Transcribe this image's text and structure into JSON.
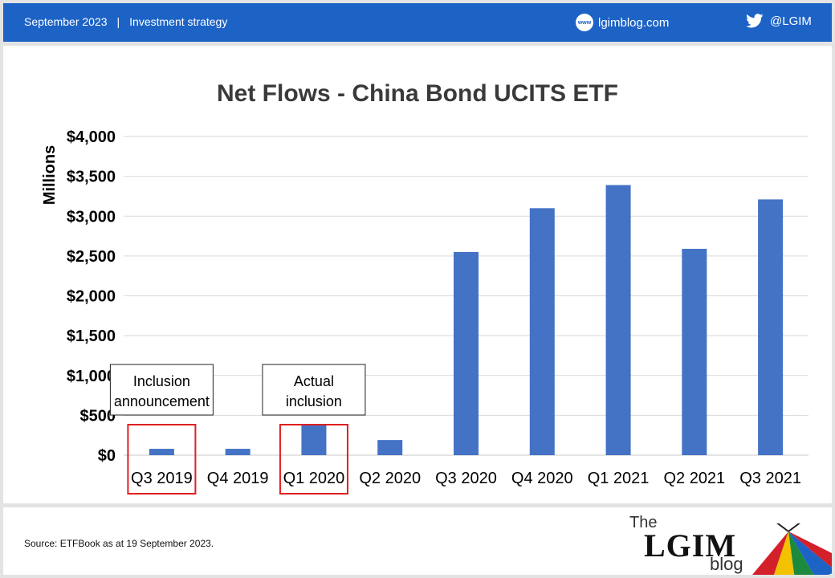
{
  "header": {
    "date": "September 2023",
    "separator": "|",
    "section": "Investment strategy",
    "site": "lgimblog.com",
    "www_label": "www",
    "twitter": "@LGIM",
    "color": "#1d63c6",
    "site_icon": "www-icon",
    "twitter_icon": "twitter-icon"
  },
  "chart_data": {
    "type": "bar",
    "title": "Net Flows - China Bond UCITS ETF",
    "ylabel": "Millions",
    "xlabel": "",
    "categories": [
      "Q3 2019",
      "Q4 2019",
      "Q1 2020",
      "Q2 2020",
      "Q3 2020",
      "Q4 2020",
      "Q1 2021",
      "Q2 2021",
      "Q3 2021"
    ],
    "values": [
      80,
      80,
      380,
      190,
      2550,
      3100,
      3390,
      2590,
      3210
    ],
    "ylim": [
      0,
      4000
    ],
    "yticks": [
      0,
      500,
      1000,
      1500,
      2000,
      2500,
      3000,
      3500,
      4000
    ],
    "ytick_labels": [
      "$0",
      "$500",
      "$1,000",
      "$1,500",
      "$2,000",
      "$2,500",
      "$3,000",
      "$3,500",
      "$4,000"
    ],
    "grid": true,
    "bar_color": "#4472c4",
    "highlight_color": "#e02020",
    "annotations": [
      {
        "lines": [
          "Inclusion",
          "announcement"
        ],
        "category_index": 0
      },
      {
        "lines": [
          "Actual",
          "inclusion"
        ],
        "category_index": 2
      }
    ],
    "highlighted_categories": [
      0,
      2
    ]
  },
  "footer": {
    "source": "Source: ETFBook as at 19 September 2023.",
    "logo_the": "The",
    "logo_main": "LGIM",
    "logo_blog": "blog"
  }
}
